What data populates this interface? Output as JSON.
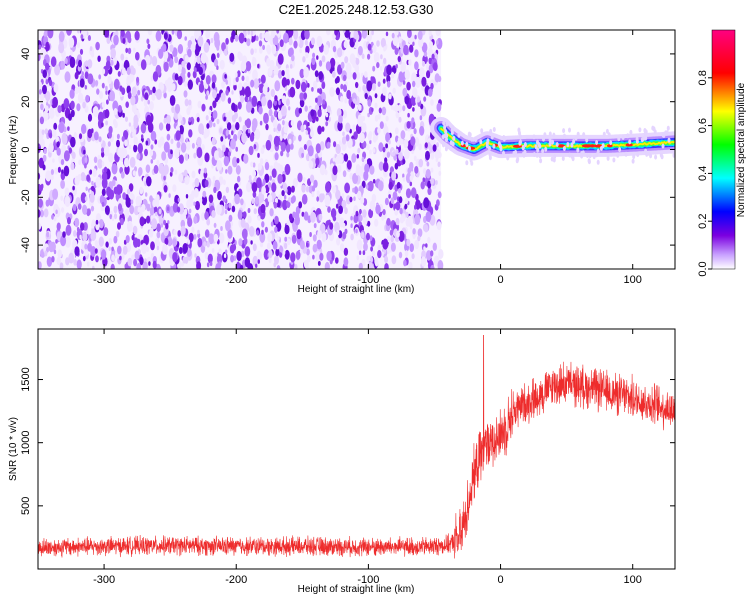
{
  "title": "C2E1.2025.248.12.53.G30",
  "chart_data": [
    {
      "type": "heatmap",
      "xlabel": "Height of straight line (km)",
      "ylabel": "Frequency (Hz)",
      "xlim": [
        -350,
        132
      ],
      "ylim": [
        -50,
        50
      ],
      "xticks": [
        -300,
        -200,
        -100,
        0,
        100
      ],
      "yticks": [
        -40,
        -20,
        0,
        20,
        40
      ],
      "noise_region": {
        "x_range": [
          -350,
          -45
        ],
        "description_level": "low amplitude (0.05-0.25)"
      },
      "signal_track": [
        {
          "x": -45,
          "y": 9
        },
        {
          "x": -40,
          "y": 6
        },
        {
          "x": -30,
          "y": 2
        },
        {
          "x": -20,
          "y": 0
        },
        {
          "x": -10,
          "y": 3
        },
        {
          "x": 0,
          "y": 1
        },
        {
          "x": 20,
          "y": 1.5
        },
        {
          "x": 50,
          "y": 1.5
        },
        {
          "x": 80,
          "y": 1.5
        },
        {
          "x": 100,
          "y": 2
        },
        {
          "x": 132,
          "y": 3
        }
      ],
      "colorbar": {
        "label": "Normalized spectral amplitude",
        "range": [
          0,
          1
        ],
        "ticks": [
          0.0,
          0.2,
          0.4,
          0.6,
          0.8
        ],
        "colors": [
          "#ffffff",
          "#c8a0ff",
          "#7b00e0",
          "#0000ff",
          "#00ffff",
          "#00ff00",
          "#ffff00",
          "#ff0000",
          "#ff0080"
        ]
      }
    },
    {
      "type": "line",
      "xlabel": "Height of straight line (km)",
      "ylabel": "SNR (10 * v/v)",
      "xlim": [
        -350,
        132
      ],
      "ylim": [
        0,
        1900
      ],
      "xticks": [
        -300,
        -200,
        -100,
        0,
        100
      ],
      "yticks": [
        500,
        1000,
        1500
      ],
      "series": [
        {
          "color": "#ee2c2c",
          "values": [
            {
              "x": -350,
              "y": 170
            },
            {
              "x": -300,
              "y": 180
            },
            {
              "x": -250,
              "y": 185
            },
            {
              "x": -200,
              "y": 180
            },
            {
              "x": -150,
              "y": 180
            },
            {
              "x": -100,
              "y": 175
            },
            {
              "x": -60,
              "y": 175
            },
            {
              "x": -40,
              "y": 190
            },
            {
              "x": -30,
              "y": 250
            },
            {
              "x": -25,
              "y": 500
            },
            {
              "x": -20,
              "y": 750
            },
            {
              "x": -15,
              "y": 900
            },
            {
              "x": -10,
              "y": 1000
            },
            {
              "x": -5,
              "y": 1050
            },
            {
              "x": 0,
              "y": 1050
            },
            {
              "x": 5,
              "y": 1150
            },
            {
              "x": 10,
              "y": 1250
            },
            {
              "x": 20,
              "y": 1320
            },
            {
              "x": 30,
              "y": 1380
            },
            {
              "x": 40,
              "y": 1450
            },
            {
              "x": 50,
              "y": 1470
            },
            {
              "x": 60,
              "y": 1450
            },
            {
              "x": 70,
              "y": 1430
            },
            {
              "x": 80,
              "y": 1400
            },
            {
              "x": 90,
              "y": 1380
            },
            {
              "x": 100,
              "y": 1350
            },
            {
              "x": 110,
              "y": 1320
            },
            {
              "x": 120,
              "y": 1290
            },
            {
              "x": 132,
              "y": 1250
            }
          ]
        }
      ]
    }
  ]
}
